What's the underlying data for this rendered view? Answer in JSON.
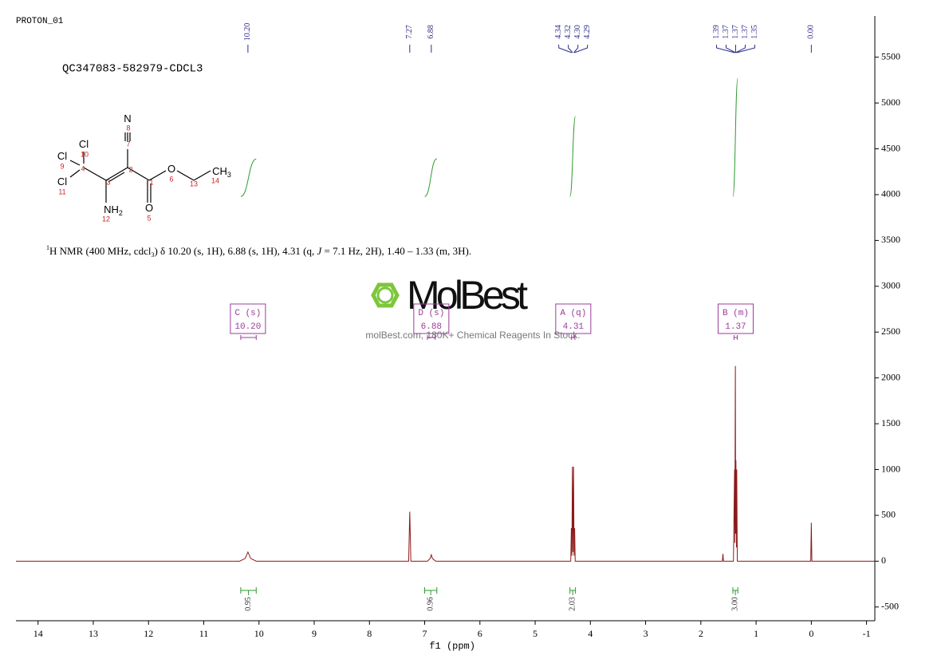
{
  "header": {
    "experiment": "PROTON_01",
    "sample": "QC347083-582979-CDCL3"
  },
  "description": [
    "1",
    "H NMR (400 MHz, cdcl",
    "3",
    ") δ 10.20 (s, 1H), 6.88 (s, 1H), 4.31 (q, ",
    "J",
    " = 7.1 Hz, 2H), 1.40 – 1.33 (m, 3H)."
  ],
  "watermark": {
    "brand": "MolBest",
    "tagline": "molBest.com, 180K+ Chemical Reagents In Stock."
  },
  "structure": {
    "atoms": [
      {
        "symbol": "N",
        "number": 8
      },
      {
        "number": 7
      },
      {
        "symbol": "Cl",
        "number": 10
      },
      {
        "symbol": "Cl",
        "number": 9
      },
      {
        "number": 4
      },
      {
        "symbol": "Cl",
        "number": 11
      },
      {
        "number": 3
      },
      {
        "symbol": "NH",
        "sub": "2",
        "number": 12
      },
      {
        "number": 2
      },
      {
        "number": 1
      },
      {
        "symbol": "O",
        "number": 6
      },
      {
        "number": 13
      },
      {
        "symbol": "CH",
        "sub": "3",
        "number": 14
      },
      {
        "symbol": "O",
        "number": 5
      }
    ]
  },
  "chart_data": {
    "type": "line",
    "x_label": "f1  (ppm)",
    "color": "#8b1a1a",
    "xlim": [
      14.4,
      -1.15
    ],
    "ylim": [
      -650,
      5950
    ],
    "xticks": [
      14,
      13,
      12,
      11,
      10,
      9,
      8,
      7,
      6,
      5,
      4,
      3,
      2,
      1,
      0,
      -1
    ],
    "yticks": [
      -500,
      0,
      500,
      1000,
      1500,
      2000,
      2500,
      3000,
      3500,
      4000,
      4500,
      5000,
      5500
    ],
    "x": [
      14.4,
      10.35,
      10.25,
      10.2,
      10.15,
      10.05,
      7.29,
      7.27,
      7.25,
      6.95,
      6.9,
      6.88,
      6.86,
      6.8,
      4.355,
      4.345,
      4.335,
      4.325,
      4.315,
      4.305,
      4.295,
      4.285,
      4.275,
      1.61,
      1.6,
      1.59,
      1.41,
      1.39,
      1.385,
      1.375,
      1.37,
      1.365,
      1.355,
      1.35,
      1.34,
      0.01,
      0,
      -0.01,
      -1.15
    ],
    "values": [
      0,
      0,
      30,
      100,
      30,
      0,
      0,
      540,
      0,
      0,
      30,
      70,
      30,
      0,
      0,
      360,
      60,
      1030,
      100,
      1030,
      60,
      360,
      0,
      0,
      80,
      0,
      0,
      1000,
      200,
      2130,
      300,
      1100,
      150,
      1000,
      0,
      0,
      420,
      0,
      0
    ],
    "peak_labels": [
      {
        "value": 10.2,
        "label": "10.20"
      },
      {
        "value": 7.27,
        "label": "7.27"
      },
      {
        "value": 6.88,
        "label": "6.88"
      },
      {
        "value": 4.34,
        "label": "4.34"
      },
      {
        "value": 4.32,
        "label": "4.32"
      },
      {
        "value": 4.3,
        "label": "4.30"
      },
      {
        "value": 4.29,
        "label": "4.29"
      },
      {
        "value": 1.39,
        "label": "1.39"
      },
      {
        "value": 1.37,
        "label": "1.37"
      },
      {
        "value": 1.37,
        "label": "1.37"
      },
      {
        "value": 1.37,
        "label": "1.37"
      },
      {
        "value": 1.35,
        "label": "1.35"
      },
      {
        "value": 0,
        "label": "0.00"
      }
    ],
    "peak_label_color": "#2d2d8c",
    "integrals": [
      {
        "range": [
          10.33,
          10.05
        ],
        "value": 0.95
      },
      {
        "range": [
          7.0,
          6.78
        ],
        "value": 0.96
      },
      {
        "range": [
          4.37,
          4.27
        ],
        "value": 2.03
      },
      {
        "range": [
          1.42,
          1.33
        ],
        "value": 3.0,
        "label": "3.00"
      }
    ],
    "integral_color": "#2e9a2e",
    "multiplets": [
      {
        "name": "C (s)",
        "shift": {
          "value": 10.2,
          "label": "10.20"
        },
        "range": [
          10.33,
          10.05
        ]
      },
      {
        "name": "D (s)",
        "shift": {
          "value": 6.88,
          "label": "6.88"
        },
        "range": [
          6.95,
          6.81
        ]
      },
      {
        "name": "A (q)",
        "shift": {
          "value": 4.31,
          "label": "4.31"
        },
        "range": [
          4.34,
          4.28
        ]
      },
      {
        "name": "B (m)",
        "shift": {
          "value": 1.37,
          "label": "1.37"
        },
        "range": [
          1.4,
          1.34
        ]
      }
    ],
    "multiplet_color": "#9b3c9b"
  }
}
